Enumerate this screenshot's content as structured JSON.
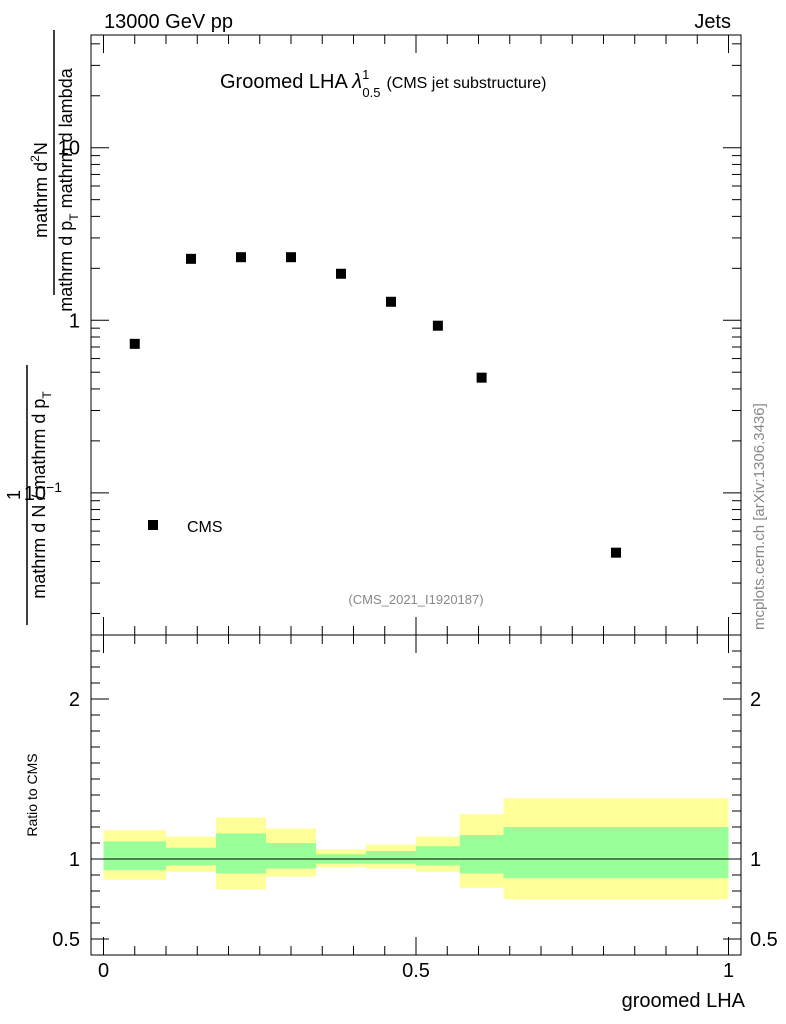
{
  "header": {
    "left": "13000 GeV pp",
    "right": "Jets"
  },
  "side_credit": "mcplots.cern.ch [arXiv:1306.3436]",
  "chart_data": [
    {
      "type": "scatter",
      "title": {
        "main": "Groomed LHA",
        "lambda": "λ",
        "sup": "1",
        "sub": "0.5",
        "note": "(CMS jet substructure)"
      },
      "ylabel": {
        "top": "1",
        "numerator": "mathrm d N / mathrm d p",
        "numerator_sub": "T",
        "bottom": "mathrm d N / mathrm d p",
        "bottom_sub": "T",
        "bottom_rest": "mathrm d lambda",
        "bottom_upper": "mathrm d",
        "bottom_upper2": "N"
      },
      "ylabel_lines": {
        "top_frac_num": "mathrm d",
        "top_frac_num_sup": "2",
        "top_frac_num_rest": "N",
        "top_frac_den": "mathrm d p",
        "top_frac_den_sub": "T",
        "top_frac_den_rest": " mathrm d lambda",
        "outer_num": "1",
        "outer_den": "mathrm d N / mathrm d p",
        "outer_den_sub": "T"
      },
      "yscale": "log",
      "ylim": [
        0.015,
        45
      ],
      "xlim": [
        -0.02,
        1.02
      ],
      "yticks": [
        {
          "v": 0.1,
          "base": "10",
          "exp": "−1"
        },
        {
          "v": 1,
          "base": "1",
          "exp": ""
        },
        {
          "v": 10,
          "base": "10",
          "exp": ""
        }
      ],
      "series": [
        {
          "name": "CMS",
          "points": [
            {
              "x": 0.05,
              "y": 0.73
            },
            {
              "x": 0.14,
              "y": 2.27
            },
            {
              "x": 0.22,
              "y": 2.32
            },
            {
              "x": 0.3,
              "y": 2.32
            },
            {
              "x": 0.38,
              "y": 1.86
            },
            {
              "x": 0.46,
              "y": 1.28
            },
            {
              "x": 0.535,
              "y": 0.93
            },
            {
              "x": 0.605,
              "y": 0.465
            },
            {
              "x": 0.82,
              "y": 0.045
            }
          ]
        }
      ],
      "legend": {
        "placement": "lower-left",
        "label": "CMS"
      },
      "watermark": "(CMS_2021_I1920187)"
    },
    {
      "type": "area",
      "ylabel": "Ratio to CMS",
      "xlabel": "groomed LHA",
      "ylim": [
        0.4,
        2.4
      ],
      "xlim": [
        -0.02,
        1.02
      ],
      "xticks": [
        {
          "v": 0,
          "label": "0"
        },
        {
          "v": 0.5,
          "label": "0.5"
        },
        {
          "v": 1,
          "label": "1"
        }
      ],
      "yticks": [
        {
          "v": 0.5,
          "label": "0.5"
        },
        {
          "v": 1,
          "label": "1"
        },
        {
          "v": 2,
          "label": "2"
        }
      ],
      "bands": [
        {
          "x0": 0.0,
          "x1": 0.1,
          "yellow": [
            0.87,
            1.18
          ],
          "green": [
            0.93,
            1.11
          ]
        },
        {
          "x0": 0.1,
          "x1": 0.18,
          "yellow": [
            0.92,
            1.14
          ],
          "green": [
            0.96,
            1.07
          ]
        },
        {
          "x0": 0.18,
          "x1": 0.26,
          "yellow": [
            0.81,
            1.26
          ],
          "green": [
            0.91,
            1.16
          ]
        },
        {
          "x0": 0.26,
          "x1": 0.34,
          "yellow": [
            0.89,
            1.19
          ],
          "green": [
            0.94,
            1.1
          ]
        },
        {
          "x0": 0.34,
          "x1": 0.42,
          "yellow": [
            0.95,
            1.06
          ],
          "green": [
            0.97,
            1.03
          ]
        },
        {
          "x0": 0.42,
          "x1": 0.5,
          "yellow": [
            0.94,
            1.09
          ],
          "green": [
            0.97,
            1.05
          ]
        },
        {
          "x0": 0.5,
          "x1": 0.57,
          "yellow": [
            0.92,
            1.14
          ],
          "green": [
            0.96,
            1.08
          ]
        },
        {
          "x0": 0.57,
          "x1": 0.64,
          "yellow": [
            0.82,
            1.28
          ],
          "green": [
            0.91,
            1.15
          ]
        },
        {
          "x0": 0.64,
          "x1": 1.0,
          "yellow": [
            0.75,
            1.38
          ],
          "green": [
            0.88,
            1.2
          ]
        }
      ],
      "reference_line": 1,
      "colors": {
        "yellow": "#ffff99",
        "green": "#99ff99"
      }
    }
  ]
}
